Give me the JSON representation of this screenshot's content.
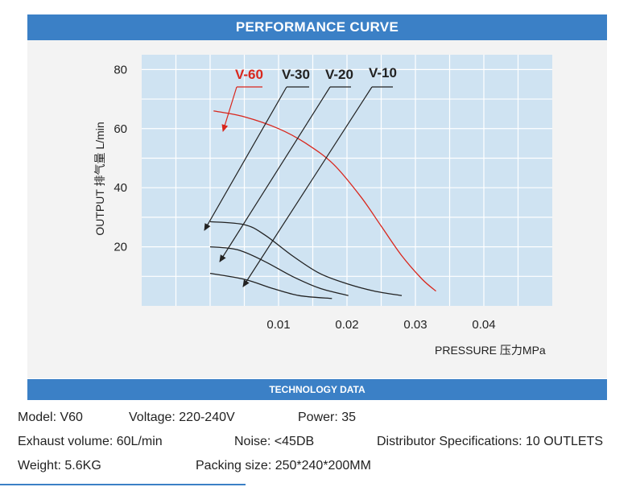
{
  "header": {
    "title": "PERFORMANCE CURVE"
  },
  "chart_data": {
    "type": "line",
    "title": "PERFORMANCE CURVE",
    "xlabel": "PRESSURE 压力MPa",
    "ylabel": "OUTPUT 排气量 L/min",
    "xlim": [
      -0.01,
      0.05
    ],
    "ylim": [
      0,
      85
    ],
    "x_ticks": [
      0.01,
      0.02,
      0.03,
      0.04
    ],
    "x_tick_labels": [
      "0.01",
      "0.02",
      "0.03",
      "0.04"
    ],
    "y_ticks": [
      20,
      40,
      60,
      80
    ],
    "y_tick_labels": [
      "20",
      "40",
      "60",
      "80"
    ],
    "grid": true,
    "series": [
      {
        "name": "V-60",
        "color": "#d9261c",
        "x": [
          0.0005,
          0.005,
          0.01,
          0.014,
          0.018,
          0.022,
          0.025,
          0.028,
          0.031,
          0.033
        ],
        "y": [
          66,
          64,
          60,
          55,
          48,
          37,
          27,
          17,
          9,
          5
        ]
      },
      {
        "name": "V-30",
        "color": "#222222",
        "x": [
          0.0,
          0.005,
          0.008,
          0.012,
          0.016,
          0.02,
          0.024,
          0.028
        ],
        "y": [
          28.5,
          27.5,
          24,
          17,
          11,
          7.5,
          5,
          3.5
        ]
      },
      {
        "name": "V-20",
        "color": "#222222",
        "x": [
          0.0,
          0.004,
          0.008,
          0.012,
          0.016,
          0.0202
        ],
        "y": [
          20,
          19,
          15,
          10,
          6,
          3.5
        ]
      },
      {
        "name": "V-10",
        "color": "#222222",
        "x": [
          0.0,
          0.005,
          0.009,
          0.013,
          0.0178
        ],
        "y": [
          11,
          9,
          6,
          3.5,
          2.5
        ]
      }
    ]
  },
  "tech": {
    "title": "TECHNOLOGY DATA"
  },
  "specs": {
    "model": "Model: V60",
    "voltage": "Voltage: 220-240V",
    "power": "Power: 35",
    "exhaust": "Exhaust volume: 60L/min",
    "noise": "Noise: <45DB",
    "distributor": "Distributor Specifications: 10 OUTLETS",
    "weight": "Weight: 5.6KG",
    "packing": "Packing size: 250*240*200MM"
  },
  "colors": {
    "accent": "#3b80c6",
    "plot_bg": "#cfe3f2",
    "grid": "#ffffff",
    "red": "#d9261c"
  }
}
